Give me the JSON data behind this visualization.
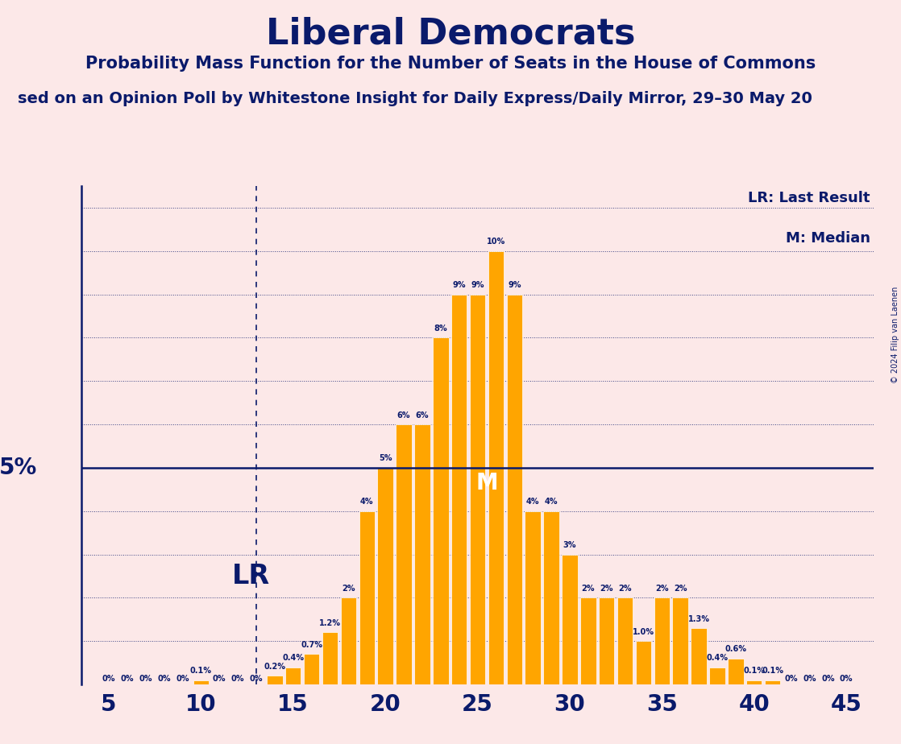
{
  "title": "Liberal Democrats",
  "subtitle": "Probability Mass Function for the Number of Seats in the House of Commons",
  "subtitle2": "sed on an Opinion Poll by Whitestone Insight for Daily Express/Daily Mirror, 29–30 May 20",
  "copyright": "© 2024 Filip van Laenen",
  "background_color": "#fce8e8",
  "bar_color": "#FFA500",
  "text_color": "#0a1a6b",
  "title_color": "#0a1a6b",
  "seats": [
    5,
    6,
    7,
    8,
    9,
    10,
    11,
    12,
    13,
    14,
    15,
    16,
    17,
    18,
    19,
    20,
    21,
    22,
    23,
    24,
    25,
    26,
    27,
    28,
    29,
    30,
    31,
    32,
    33,
    34,
    35,
    36,
    37,
    38,
    39,
    40,
    41,
    42,
    43,
    44,
    45
  ],
  "values": [
    0.0,
    0.0,
    0.0,
    0.0,
    0.0,
    0.1,
    0.0,
    0.0,
    0.0,
    0.2,
    0.4,
    0.7,
    1.2,
    2.0,
    4.0,
    5.0,
    6.0,
    6.0,
    8.0,
    9.0,
    9.0,
    10.0,
    9.0,
    4.0,
    4.0,
    3.0,
    2.0,
    2.0,
    2.0,
    1.0,
    2.0,
    2.0,
    1.3,
    0.4,
    0.6,
    0.1,
    0.1,
    0.0,
    0.0,
    0.0,
    0.0
  ],
  "labels": [
    "0%",
    "0%",
    "0%",
    "0%",
    "0%",
    "0.1%",
    "0%",
    "0%",
    "0%",
    "0.2%",
    "0.4%",
    "0.7%",
    "1.2%",
    "2%",
    "4%",
    "5%",
    "6%",
    "6%",
    "8%",
    "9%",
    "9%",
    "10%",
    "9%",
    "4%",
    "4%",
    "3%",
    "2%",
    "2%",
    "2%",
    "1.0%",
    "2%",
    "2%",
    "1.3%",
    "0.4%",
    "0.6%",
    "0.1%",
    "0.1%",
    "0%",
    "0%",
    "0%",
    "0%"
  ],
  "lr_seat": 13,
  "median_seat": 24,
  "five_pct_line": 5.0,
  "legend_lr": "LR: Last Result",
  "legend_m": "M: Median",
  "ylabel_5pct": "5%",
  "xticks": [
    5,
    10,
    15,
    20,
    25,
    30,
    35,
    40,
    45
  ],
  "yticks_dotted": [
    1,
    2,
    3,
    4,
    6,
    7,
    8,
    9,
    10,
    11
  ],
  "grid_color": "#0a1a6b",
  "five_pct_color": "#0a1a6b",
  "lr_line_color": "#0a1a6b",
  "ylim_max": 11.5,
  "bar_width": 0.85
}
